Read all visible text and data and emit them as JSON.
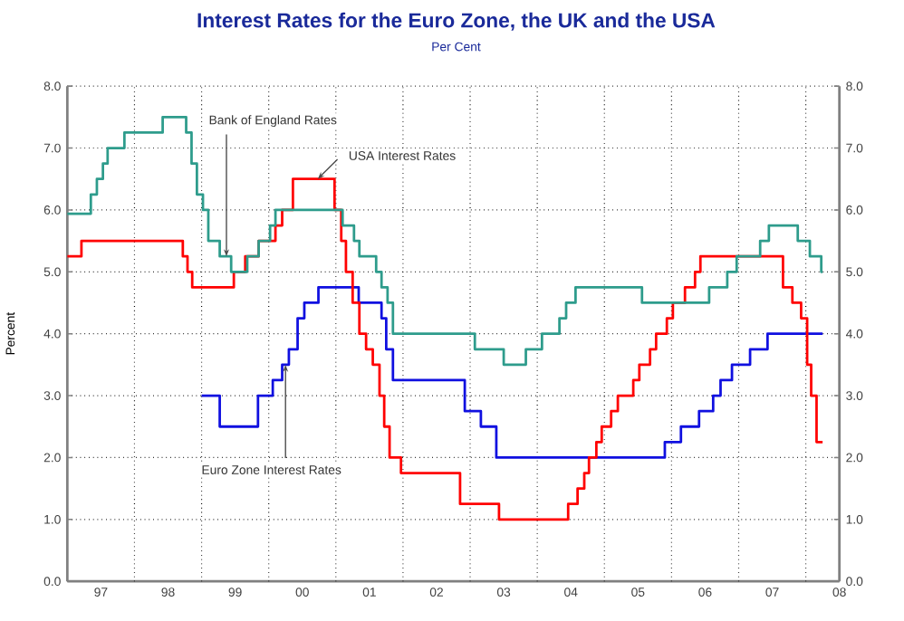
{
  "chart_data": {
    "type": "step",
    "title": "Interest Rates for the Euro Zone, the UK and the USA",
    "subtitle": "Per Cent",
    "ylabel": "Percent",
    "xlim": [
      1996.5,
      2008.0
    ],
    "xticks": [
      {
        "value": 1997,
        "label": "97"
      },
      {
        "value": 1998,
        "label": "98"
      },
      {
        "value": 1999,
        "label": "99"
      },
      {
        "value": 2000,
        "label": "00"
      },
      {
        "value": 2001,
        "label": "01"
      },
      {
        "value": 2002,
        "label": "02"
      },
      {
        "value": 2003,
        "label": "03"
      },
      {
        "value": 2004,
        "label": "04"
      },
      {
        "value": 2005,
        "label": "05"
      },
      {
        "value": 2006,
        "label": "06"
      },
      {
        "value": 2007,
        "label": "07"
      },
      {
        "value": 2008,
        "label": "08"
      },
      {
        "value": 1997.5,
        "label": null
      },
      {
        "value": 1998.5,
        "label": null
      },
      {
        "value": 1999.5,
        "label": null
      },
      {
        "value": 2000.5,
        "label": null
      },
      {
        "value": 2001.5,
        "label": null
      },
      {
        "value": 2002.5,
        "label": null
      },
      {
        "value": 2003.5,
        "label": null
      },
      {
        "value": 2004.5,
        "label": null
      },
      {
        "value": 2005.5,
        "label": null
      },
      {
        "value": 2006.5,
        "label": null
      },
      {
        "value": 2007.5,
        "label": null
      }
    ],
    "ylim": [
      0,
      8
    ],
    "yticks": [
      {
        "value": 0,
        "label": "0.0"
      },
      {
        "value": 1,
        "label": "1.0"
      },
      {
        "value": 2,
        "label": "2.0"
      },
      {
        "value": 3,
        "label": "3.0"
      },
      {
        "value": 4,
        "label": "4.0"
      },
      {
        "value": 5,
        "label": "5.0"
      },
      {
        "value": 6,
        "label": "6.0"
      },
      {
        "value": 7,
        "label": "7.0"
      },
      {
        "value": 8,
        "label": "8.0"
      }
    ],
    "y2lim": [
      0,
      8
    ],
    "y2ticks": [
      {
        "value": 0,
        "label": "0.0"
      },
      {
        "value": 1,
        "label": "1.0"
      },
      {
        "value": 2,
        "label": "2.0"
      },
      {
        "value": 3,
        "label": "3.0"
      },
      {
        "value": 4,
        "label": "4.0"
      },
      {
        "value": 5,
        "label": "5.0"
      },
      {
        "value": 6,
        "label": "6.0"
      },
      {
        "value": 7,
        "label": "7.0"
      },
      {
        "value": 8,
        "label": "8.0"
      }
    ],
    "grid": true,
    "series": [
      {
        "color": "#2E9C8C",
        "x": [
          1996.5,
          1996.85,
          1996.94,
          1997.03,
          1997.1,
          1997.35,
          1997.92,
          1998.27,
          1998.35,
          1998.43,
          1998.52,
          1998.6,
          1998.77,
          1998.94,
          1999.18,
          1999.35,
          1999.52,
          1999.6,
          2000.6,
          2000.77,
          2000.85,
          2001.1,
          2001.18,
          2001.27,
          2001.35,
          2002.57,
          2003.0,
          2003.33,
          2003.57,
          2003.83,
          2003.93,
          2004.07,
          2005.06,
          2006.06,
          2006.33,
          2006.47,
          2006.82,
          2006.95,
          2007.38,
          2007.56,
          2007.73,
          2007.75
        ],
        "values": [
          5.94,
          6.25,
          6.5,
          6.75,
          7.0,
          7.25,
          7.5,
          7.25,
          6.75,
          6.25,
          6.0,
          5.5,
          5.25,
          5.0,
          5.25,
          5.5,
          5.75,
          6.0,
          5.75,
          5.5,
          5.25,
          5.0,
          4.75,
          4.5,
          4.0,
          3.75,
          3.5,
          3.75,
          4.0,
          4.25,
          4.5,
          4.75,
          4.5,
          4.75,
          5.0,
          5.25,
          5.5,
          5.75,
          5.5,
          5.25,
          5.0,
          5.0
        ]
      },
      {
        "color": "#FF0000",
        "x": [
          1996.5,
          1996.71,
          1998.22,
          1998.29,
          1998.36,
          1998.98,
          1999.15,
          1999.35,
          1999.6,
          1999.7,
          1999.86,
          2000.48,
          2000.58,
          2000.65,
          2000.75,
          2000.85,
          2000.95,
          2001.05,
          2001.15,
          2001.22,
          2001.3,
          2001.47,
          2002.35,
          2002.93,
          2003.96,
          2004.1,
          2004.2,
          2004.27,
          2004.38,
          2004.46,
          2004.6,
          2004.7,
          2004.93,
          2005.02,
          2005.18,
          2005.27,
          2005.43,
          2005.52,
          2005.7,
          2005.85,
          2005.93,
          2007.16,
          2007.3,
          2007.43,
          2007.52,
          2007.58,
          2007.66,
          2007.75
        ],
        "values": [
          5.25,
          5.5,
          5.25,
          5.0,
          4.75,
          5.0,
          5.25,
          5.5,
          5.75,
          6.0,
          6.5,
          6.0,
          5.5,
          5.0,
          4.5,
          4.0,
          3.75,
          3.5,
          3.0,
          2.5,
          2.0,
          1.75,
          1.25,
          1.0,
          1.25,
          1.5,
          1.75,
          2.0,
          2.25,
          2.5,
          2.75,
          3.0,
          3.25,
          3.5,
          3.75,
          4.0,
          4.25,
          4.5,
          4.75,
          5.0,
          5.25,
          4.75,
          4.5,
          4.25,
          3.5,
          3.0,
          2.25,
          2.25
        ]
      },
      {
        "color": "#1010E0",
        "x": [
          1998.5,
          1998.77,
          1999.34,
          1999.56,
          1999.7,
          1999.8,
          1999.93,
          2000.03,
          2000.24,
          2000.84,
          2001.18,
          2001.25,
          2001.35,
          2002.42,
          2002.66,
          2002.89,
          2005.4,
          2005.64,
          2005.91,
          2006.12,
          2006.23,
          2006.4,
          2006.67,
          2006.93,
          2007.75
        ],
        "values": [
          3.0,
          2.5,
          3.0,
          3.25,
          3.5,
          3.75,
          4.25,
          4.5,
          4.75,
          4.5,
          4.25,
          3.75,
          3.25,
          2.75,
          2.5,
          2.0,
          2.25,
          2.5,
          2.75,
          3.0,
          3.25,
          3.5,
          3.75,
          4.0,
          4.0
        ]
      }
    ],
    "annotations": [
      {
        "text": "Bank of England Rates",
        "x": 1998.87,
        "y": 5.25
      },
      {
        "text": "USA Interest Rates",
        "x": 2000.23,
        "y": 6.5
      },
      {
        "text": "Euro Zone Interest Rates",
        "x": 1999.75,
        "y": 3.5
      }
    ]
  }
}
